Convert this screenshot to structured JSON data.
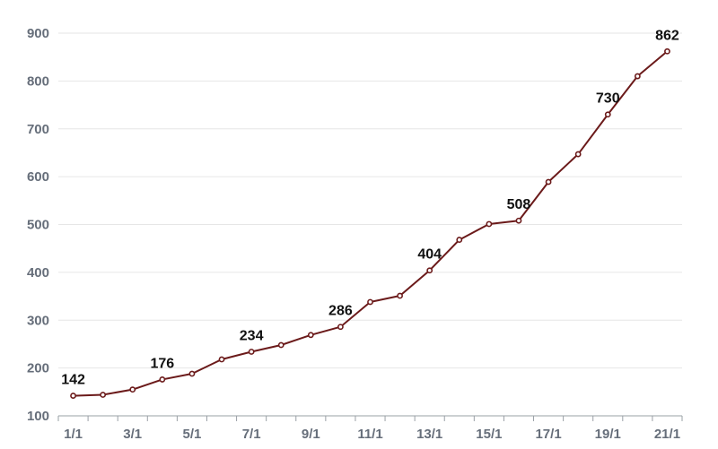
{
  "chart_data": {
    "type": "line",
    "title": "",
    "xlabel": "",
    "ylabel": "",
    "ylim": [
      100,
      900
    ],
    "yticks": [
      100,
      200,
      300,
      400,
      500,
      600,
      700,
      800,
      900
    ],
    "grid": "horizontal",
    "legend": "none",
    "colors": {
      "line": "#6b1a1a",
      "grid": "#e6e6e6",
      "axis": "#9aa0a6",
      "tick_text": "#666e7a",
      "label_text": "#111111"
    },
    "x": [
      "1/1",
      "2/1",
      "3/1",
      "4/1",
      "5/1",
      "6/1",
      "7/1",
      "8/1",
      "9/1",
      "10/1",
      "11/1",
      "12/1",
      "13/1",
      "14/1",
      "15/1",
      "16/1",
      "17/1",
      "18/1",
      "19/1",
      "20/1",
      "21/1"
    ],
    "x_tick_labels": [
      "1/1",
      "3/1",
      "5/1",
      "7/1",
      "9/1",
      "11/1",
      "13/1",
      "15/1",
      "17/1",
      "19/1",
      "21/1"
    ],
    "values": [
      142,
      144,
      155,
      176,
      188,
      218,
      234,
      248,
      269,
      286,
      338,
      351,
      404,
      468,
      501,
      508,
      589,
      647,
      730,
      810,
      862
    ],
    "labeled_points": [
      {
        "x": "1/1",
        "label": "142"
      },
      {
        "x": "4/1",
        "label": "176"
      },
      {
        "x": "7/1",
        "label": "234"
      },
      {
        "x": "10/1",
        "label": "286"
      },
      {
        "x": "13/1",
        "label": "404"
      },
      {
        "x": "16/1",
        "label": "508"
      },
      {
        "x": "19/1",
        "label": "730"
      },
      {
        "x": "21/1",
        "label": "862"
      }
    ]
  }
}
